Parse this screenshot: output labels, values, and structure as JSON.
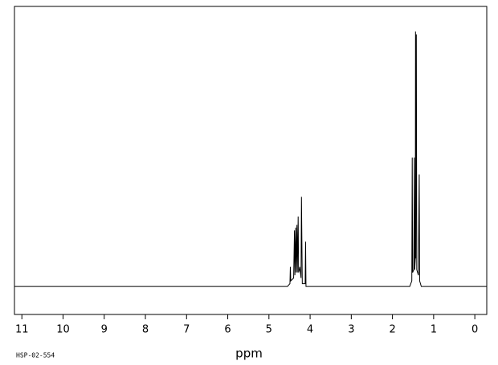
{
  "chart_data": {
    "type": "line",
    "x_label": "ppm",
    "annotation": "HSP-02-554",
    "xlim": [
      11.18,
      -0.29
    ],
    "ylim": [
      -0.1,
      1.0
    ],
    "xticks": [
      11,
      10,
      9,
      8,
      7,
      6,
      5,
      4,
      3,
      2,
      1,
      0
    ],
    "series": [
      {
        "color": "#000000",
        "x": [
          11.18,
          4.55,
          4.49,
          4.48,
          4.47,
          4.4,
          4.38,
          4.37,
          4.35,
          4.34,
          4.32,
          4.31,
          4.29,
          4.28,
          4.26,
          4.25,
          4.22,
          4.21,
          4.19,
          4.12,
          4.11,
          4.1,
          4.0,
          1.58,
          1.53,
          1.52,
          1.51,
          1.48,
          1.47,
          1.46,
          1.445,
          1.44,
          1.435,
          1.42,
          1.41,
          1.37,
          1.35,
          1.34,
          1.3,
          -0.29
        ],
        "values": [
          0,
          0,
          0.01,
          0.07,
          0.02,
          0.03,
          0.2,
          0.04,
          0.21,
          0.05,
          0.22,
          0.05,
          0.25,
          0.05,
          0.06,
          0.07,
          0.03,
          0.32,
          0.01,
          0.01,
          0.16,
          0,
          0,
          0,
          0.02,
          0.46,
          0.05,
          0.06,
          0.46,
          0.06,
          0.1,
          0.91,
          0.1,
          0.9,
          0.06,
          0.04,
          0.4,
          0.02,
          0,
          0
        ]
      }
    ]
  }
}
